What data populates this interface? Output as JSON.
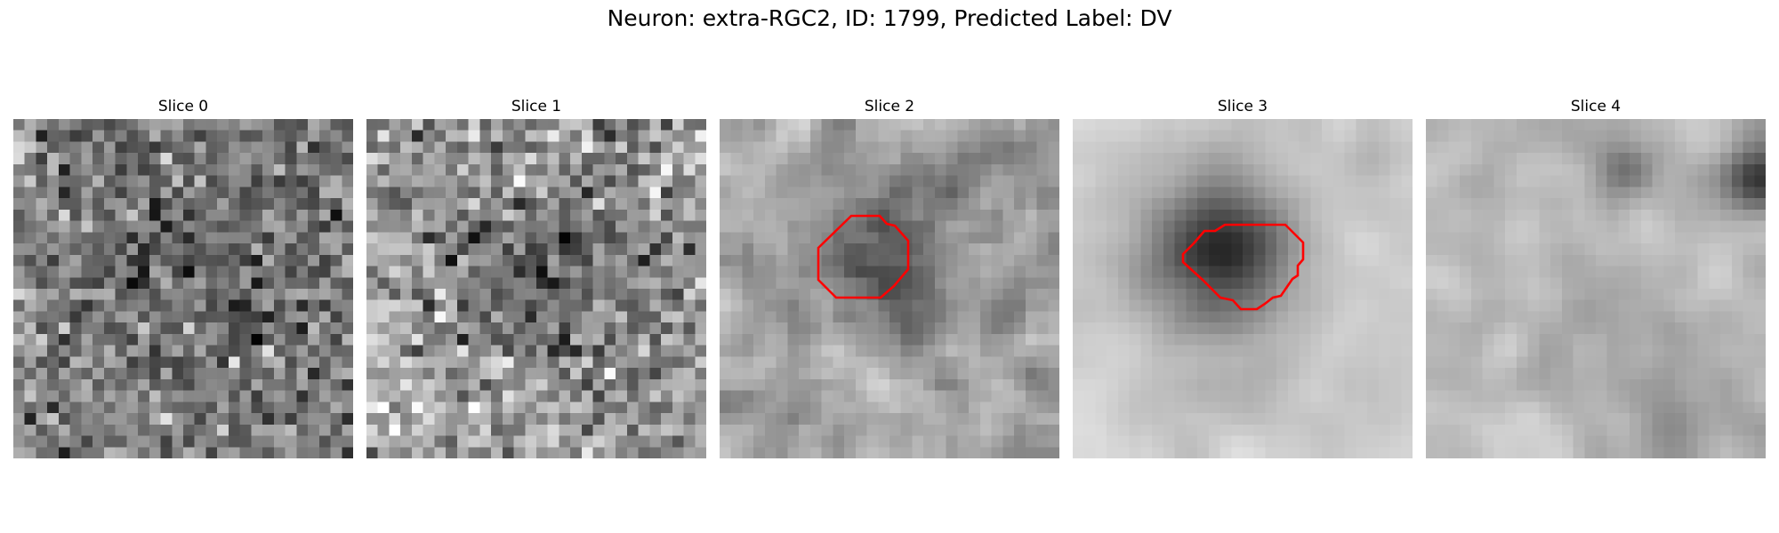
{
  "figure": {
    "title": "Neuron: extra-RGC2, ID: 1799, Predicted Label: DV"
  },
  "slices": [
    {
      "title": "Slice 0",
      "contour": false
    },
    {
      "title": "Slice 1",
      "contour": false
    },
    {
      "title": "Slice 2",
      "contour": true
    },
    {
      "title": "Slice 3",
      "contour": true
    },
    {
      "title": "Slice 4",
      "contour": false
    }
  ],
  "colors": {
    "contour": "#ff0000",
    "background": "#ffffff",
    "colormap": "gray"
  }
}
